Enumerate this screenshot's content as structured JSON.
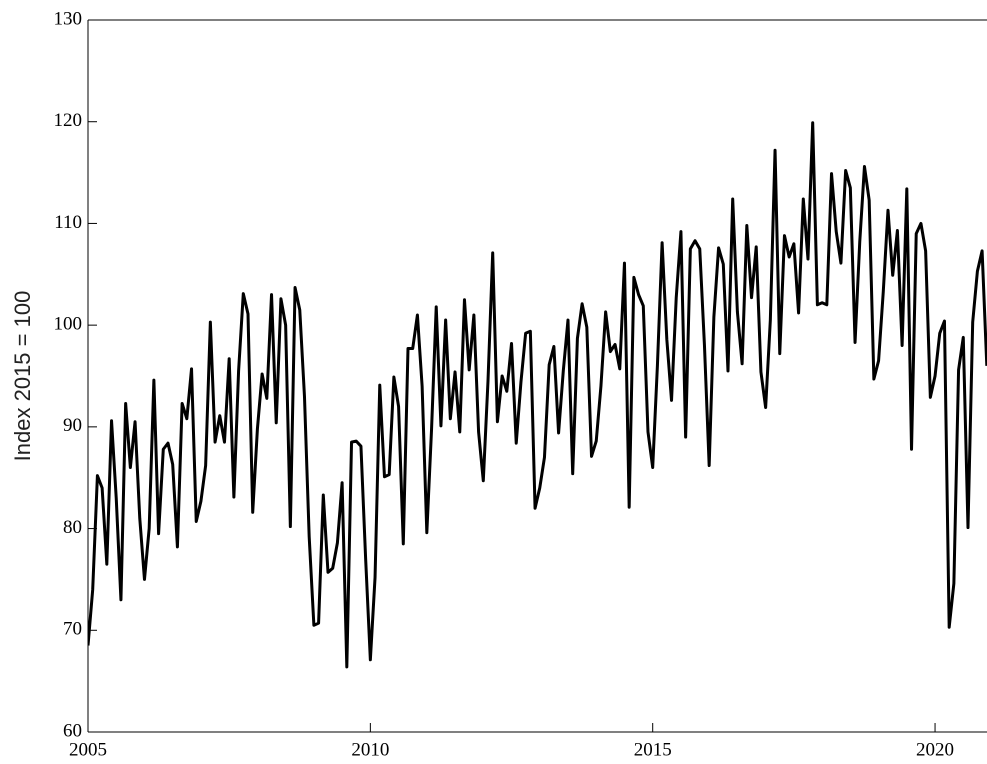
{
  "chart_data": {
    "type": "line",
    "y_label": "Index 2015 = 100",
    "xlim": [
      2005,
      2020.92
    ],
    "ylim": [
      60,
      130
    ],
    "xticks": [
      2005,
      2010,
      2015,
      2020
    ],
    "yticks": [
      60,
      70,
      80,
      90,
      100,
      110,
      120,
      130
    ],
    "x": [
      2005,
      2005.0833,
      2005.1667,
      2005.25,
      2005.3333,
      2005.4167,
      2005.5,
      2005.5833,
      2005.6667,
      2005.75,
      2005.8333,
      2005.9167,
      2006,
      2006.0833,
      2006.1667,
      2006.25,
      2006.3333,
      2006.4167,
      2006.5,
      2006.5833,
      2006.6667,
      2006.75,
      2006.8333,
      2006.9167,
      2007,
      2007.0833,
      2007.1667,
      2007.25,
      2007.3333,
      2007.4167,
      2007.5,
      2007.5833,
      2007.6667,
      2007.75,
      2007.8333,
      2007.9167,
      2008,
      2008.0833,
      2008.1667,
      2008.25,
      2008.3333,
      2008.4167,
      2008.5,
      2008.5833,
      2008.6667,
      2008.75,
      2008.8333,
      2008.9167,
      2009,
      2009.0833,
      2009.1667,
      2009.25,
      2009.3333,
      2009.4167,
      2009.5,
      2009.5833,
      2009.6667,
      2009.75,
      2009.8333,
      2009.9167,
      2010,
      2010.0833,
      2010.1667,
      2010.25,
      2010.3333,
      2010.4167,
      2010.5,
      2010.5833,
      2010.6667,
      2010.75,
      2010.8333,
      2010.9167,
      2011,
      2011.0833,
      2011.1667,
      2011.25,
      2011.3333,
      2011.4167,
      2011.5,
      2011.5833,
      2011.6667,
      2011.75,
      2011.8333,
      2011.9167,
      2012,
      2012.0833,
      2012.1667,
      2012.25,
      2012.3333,
      2012.4167,
      2012.5,
      2012.5833,
      2012.6667,
      2012.75,
      2012.8333,
      2012.9167,
      2013,
      2013.0833,
      2013.1667,
      2013.25,
      2013.3333,
      2013.4167,
      2013.5,
      2013.5833,
      2013.6667,
      2013.75,
      2013.8333,
      2013.9167,
      2014,
      2014.0833,
      2014.1667,
      2014.25,
      2014.3333,
      2014.4167,
      2014.5,
      2014.5833,
      2014.6667,
      2014.75,
      2014.8333,
      2014.9167,
      2015,
      2015.0833,
      2015.1667,
      2015.25,
      2015.3333,
      2015.4167,
      2015.5,
      2015.5833,
      2015.6667,
      2015.75,
      2015.8333,
      2015.9167,
      2016,
      2016.0833,
      2016.1667,
      2016.25,
      2016.3333,
      2016.4167,
      2016.5,
      2016.5833,
      2016.6667,
      2016.75,
      2016.8333,
      2016.9167,
      2017,
      2017.0833,
      2017.1667,
      2017.25,
      2017.3333,
      2017.4167,
      2017.5,
      2017.5833,
      2017.6667,
      2017.75,
      2017.8333,
      2017.9167,
      2018,
      2018.0833,
      2018.1667,
      2018.25,
      2018.3333,
      2018.4167,
      2018.5,
      2018.5833,
      2018.6667,
      2018.75,
      2018.8333,
      2018.9167,
      2019,
      2019.0833,
      2019.1667,
      2019.25,
      2019.3333,
      2019.4167,
      2019.5,
      2019.5833,
      2019.6667,
      2019.75,
      2019.8333,
      2019.9167,
      2020,
      2020.0833,
      2020.1667,
      2020.25,
      2020.3333,
      2020.4167,
      2020.5,
      2020.5833,
      2020.6667,
      2020.75,
      2020.8333,
      2020.9167
    ],
    "series": [
      {
        "color": "#000000",
        "values": [
          68.5,
          74,
          85.2,
          84,
          76.5,
          90.6,
          83,
          73,
          92.3,
          86,
          90.5,
          81,
          75,
          80,
          94.6,
          79.5,
          87.8,
          88.4,
          86.3,
          78.2,
          92.3,
          90.8,
          95.7,
          80.7,
          82.7,
          86.2,
          100.3,
          88.5,
          91.1,
          88.5,
          96.7,
          83.1,
          95.5,
          103.1,
          101.1,
          81.6,
          89.8,
          95.2,
          92.8,
          103,
          90.4,
          102.6,
          100,
          80.2,
          103.7,
          101.5,
          93,
          79.2,
          70.5,
          70.7,
          83.3,
          75.7,
          76.1,
          78.6,
          84.5,
          66.4,
          88.5,
          88.6,
          88.1,
          77,
          67.1,
          75.2,
          94.1,
          85.1,
          85.3,
          94.9,
          92,
          78.5,
          97.7,
          97.7,
          101,
          94,
          79.6,
          89.7,
          101.8,
          90.1,
          100.5,
          90.8,
          95.4,
          89.5,
          102.5,
          95.6,
          101,
          89.5,
          84.7,
          94.5,
          107.1,
          90.5,
          95,
          93.5,
          98.2,
          88.4,
          94.4,
          99.2,
          99.4,
          82,
          84,
          87,
          96.1,
          97.9,
          89.4,
          95.5,
          100.5,
          85.4,
          98.7,
          102.1,
          99.8,
          87.1,
          88.6,
          94,
          101.3,
          97.4,
          98.1,
          95.7,
          106.1,
          82.1,
          104.7,
          103,
          101.9,
          89.5,
          86,
          96,
          108.1,
          98.6,
          92.6,
          102.7,
          109.2,
          89,
          107.5,
          108.3,
          107.5,
          98,
          86.2,
          100.8,
          107.6,
          106,
          95.5,
          112.4,
          101.3,
          96.2,
          109.8,
          102.7,
          107.7,
          95.4,
          91.9,
          100.5,
          117.2,
          97.2,
          108.8,
          106.7,
          108,
          101.2,
          112.4,
          106.5,
          119.9,
          102,
          102.2,
          102,
          114.9,
          109.2,
          106.1,
          115.2,
          113.5,
          98.3,
          108.2,
          115.6,
          112.3,
          94.7,
          96.5,
          103.3,
          111.3,
          104.9,
          109.3,
          98,
          113.4,
          87.8,
          109,
          110,
          107.3,
          92.9,
          95,
          99.2,
          100.4,
          70.3,
          74.6,
          95.6,
          98.8,
          80.1,
          100.3,
          105.3,
          107.3,
          96
        ]
      }
    ]
  }
}
